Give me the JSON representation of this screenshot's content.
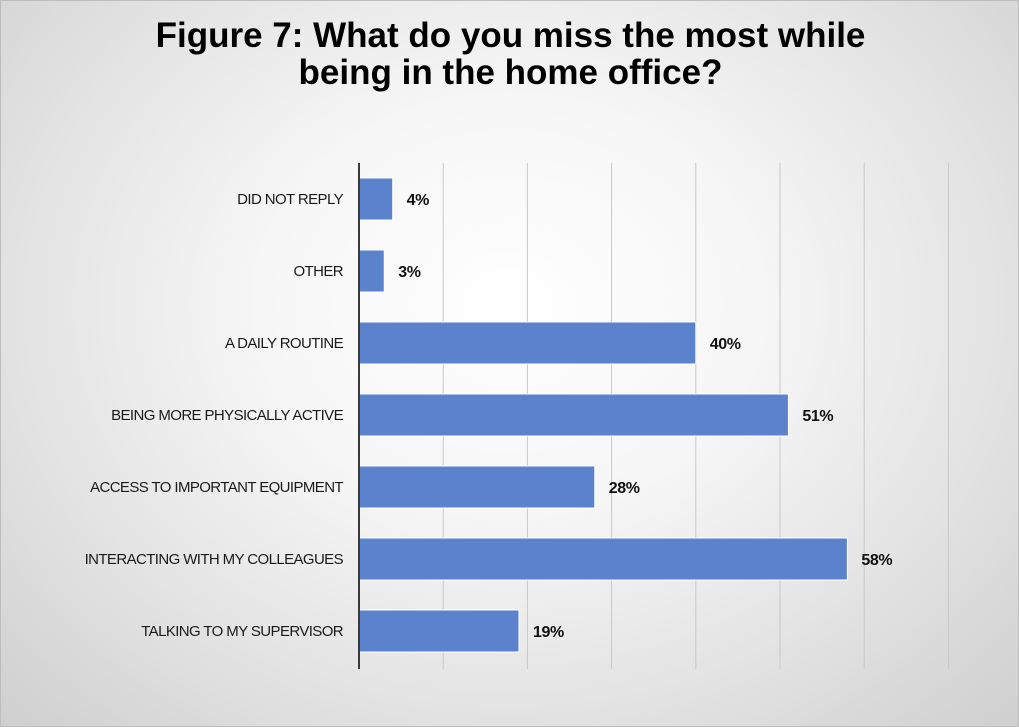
{
  "chart_data": {
    "type": "bar",
    "orientation": "horizontal",
    "title": "Figure 7: What do you miss the most while being in the home office?",
    "title_lines": [
      "Figure 7: What do you miss the most while",
      "being in the home office?"
    ],
    "categories": [
      "DID NOT REPLY",
      "OTHER",
      "A DAILY ROUTINE",
      "BEING  MORE PHYSICALLY ACTIVE",
      "ACCESS TO IMPORTANT EQUIPMENT",
      "INTERACTING WITH  MY COLLEAGUES",
      "TALKING TO MY SUPERVISOR"
    ],
    "values": [
      4,
      3,
      40,
      51,
      28,
      58,
      19
    ],
    "value_labels": [
      "4%",
      "3%",
      "40%",
      "51%",
      "28%",
      "58%",
      "19%"
    ],
    "xlim": [
      0,
      70
    ],
    "x_gridline_step": 10,
    "grid": "vertical",
    "legend": "none",
    "xlabel": "",
    "ylabel": "",
    "bar_color": "#5b82cc"
  }
}
